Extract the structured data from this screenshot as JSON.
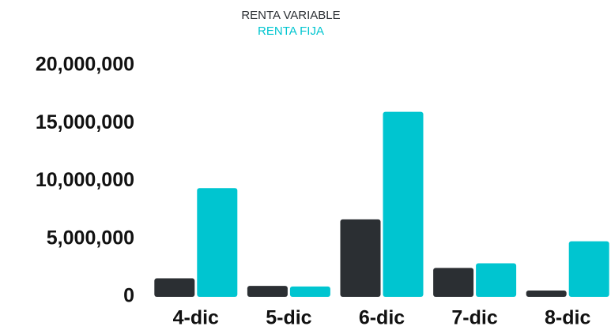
{
  "chart_data": {
    "type": "bar",
    "categories": [
      "4-dic",
      "5-dic",
      "6-dic",
      "7-dic",
      "8-dic"
    ],
    "series": [
      {
        "name": "RENTA VARIABLE",
        "color": "#2b2f33",
        "values": [
          1600000,
          950000,
          6700000,
          2500000,
          550000
        ]
      },
      {
        "name": "RENTA FIJA",
        "color": "#00c5d0",
        "values": [
          9400000,
          900000,
          16000000,
          2900000,
          4800000
        ]
      }
    ],
    "ylim": [
      0,
      20000000
    ],
    "yticks": [
      0,
      {
        "value": 5000000,
        "label": "5,000,000"
      },
      {
        "value": 10000000,
        "label": "10,000,000"
      },
      {
        "value": 15000000,
        "label": "15,000,000"
      },
      {
        "value": 20000000,
        "label": "20,000,000"
      }
    ],
    "grid": false,
    "legend": "top"
  }
}
